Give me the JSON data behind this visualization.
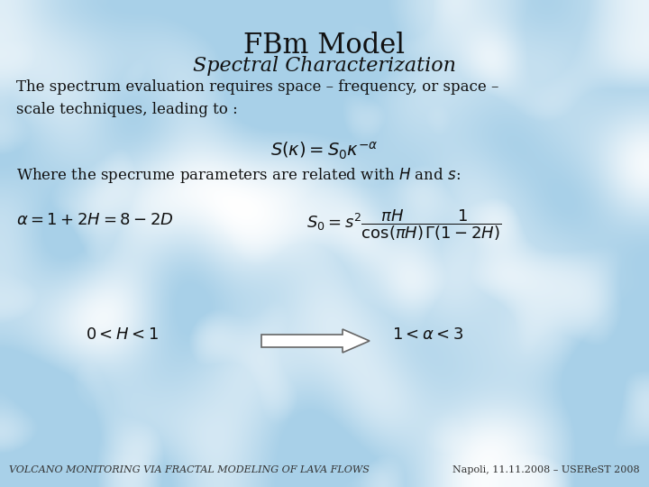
{
  "title": "FBm Model",
  "subtitle": "Spectral Characterization",
  "body_text1": "The spectrum evaluation requires space – frequency, or space –\nscale techniques, leading to :",
  "eq1": "$S(\\kappa) = S_0\\kappa^{-\\alpha}$",
  "body_text2": "Where the specrume parameters are related with $H$ and $s$:",
  "eq2_left": "$\\alpha = 1+2H = 8-2D$",
  "eq2_right": "$S_0 = s^2 \\dfrac{\\pi H}{\\cos(\\pi H)} \\dfrac{1}{\\Gamma(1-2H)}$",
  "range_left": "$0< H <1$",
  "range_right": "$1< \\alpha <3$",
  "footer_left": "VOLCANO MONITORING VIA FRACTAL MODELING OF LAVA FLOWS",
  "footer_right": "Napoli, 11.11.2008 – USEReST 2008",
  "title_fontsize": 22,
  "subtitle_fontsize": 16,
  "body_fontsize": 12,
  "eq_fontsize": 14,
  "small_eq_fontsize": 13,
  "footer_fontsize": 8,
  "bg_light": "#a8cce0",
  "bg_mid": "#c0d8ea",
  "text_color": "#111111"
}
